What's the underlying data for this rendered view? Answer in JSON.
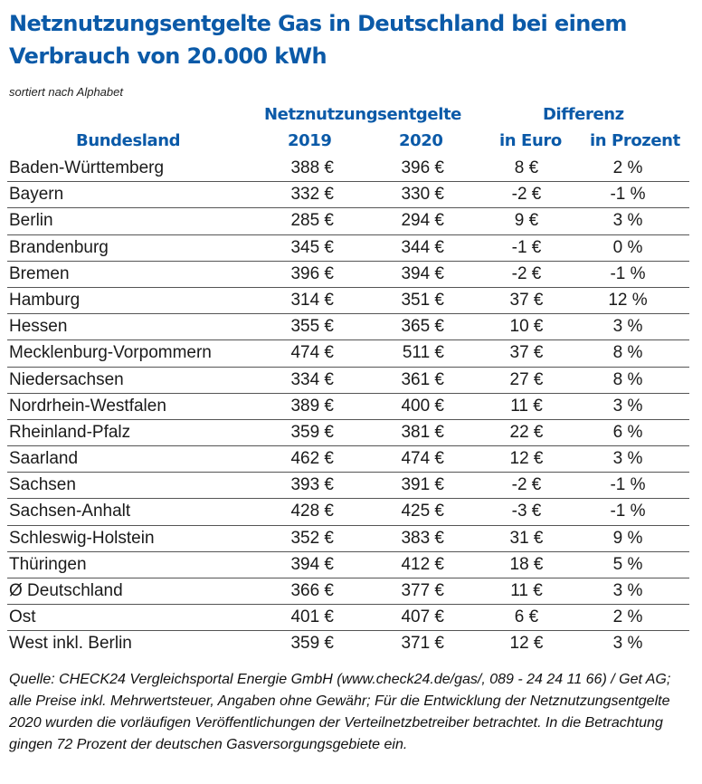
{
  "title": "Netznutzungsentgelte Gas in Deutschland bei einem Verbrauch von 20.000 kWh",
  "subtitle": "sortiert nach Alphabet",
  "header": {
    "group_fees": "Netznutzungsentgelte",
    "group_diff": "Differenz",
    "col_state": "Bundesland",
    "col_2019": "2019",
    "col_2020": "2020",
    "col_euro": "in Euro",
    "col_pct": "in Prozent"
  },
  "colors": {
    "accent": "#0b5aa8",
    "text": "#1a1a1a",
    "rule": "#555555"
  },
  "chart_data": {
    "type": "table",
    "title": "Netznutzungsentgelte Gas in Deutschland bei einem Verbrauch von 20.000 kWh",
    "columns": [
      "Bundesland",
      "2019",
      "2020",
      "in Euro",
      "in Prozent"
    ],
    "rows": [
      [
        "Baden-Württemberg",
        "388 €",
        "396 €",
        "8 €",
        "2 %"
      ],
      [
        "Bayern",
        "332 €",
        "330 €",
        "-2 €",
        "-1 %"
      ],
      [
        "Berlin",
        "285 €",
        "294 €",
        "9 €",
        "3 %"
      ],
      [
        "Brandenburg",
        "345 €",
        "344 €",
        "-1 €",
        "0 %"
      ],
      [
        "Bremen",
        "396 €",
        "394 €",
        "-2 €",
        "-1 %"
      ],
      [
        "Hamburg",
        "314 €",
        "351 €",
        "37 €",
        "12 %"
      ],
      [
        "Hessen",
        "355 €",
        "365 €",
        "10 €",
        "3 %"
      ],
      [
        "Mecklenburg-Vorpommern",
        "474 €",
        "511 €",
        "37 €",
        "8 %"
      ],
      [
        "Niedersachsen",
        "334 €",
        "361 €",
        "27 €",
        "8 %"
      ],
      [
        "Nordrhein-Westfalen",
        "389 €",
        "400 €",
        "11 €",
        "3 %"
      ],
      [
        "Rheinland-Pfalz",
        "359 €",
        "381 €",
        "22 €",
        "6 %"
      ],
      [
        "Saarland",
        "462 €",
        "474 €",
        "12 €",
        "3 %"
      ],
      [
        "Sachsen",
        "393 €",
        "391 €",
        "-2 €",
        "-1 %"
      ],
      [
        "Sachsen-Anhalt",
        "428 €",
        "425 €",
        "-3 €",
        "-1 %"
      ],
      [
        "Schleswig-Holstein",
        "352 €",
        "383 €",
        "31 €",
        "9 %"
      ],
      [
        "Thüringen",
        "394 €",
        "412 €",
        "18 €",
        "5 %"
      ],
      [
        "Ø Deutschland",
        "366 €",
        "377 €",
        "11 €",
        "3 %"
      ],
      [
        "Ost",
        "401 €",
        "407 €",
        "6 €",
        "2 %"
      ],
      [
        "West inkl. Berlin",
        "359 €",
        "371 €",
        "12 €",
        "3 %"
      ]
    ]
  },
  "footer": "Quelle: CHECK24 Vergleichsportal Energie GmbH (www.check24.de/gas/, 089 - 24 24 11 66) / Get AG; alle Preise inkl. Mehrwertsteuer, Angaben ohne Gewähr; Für die Entwicklung der Netznutzungsentgelte 2020 wurden die vorläufigen Veröffentlichungen der Verteilnetzbetreiber betrachtet. In die Betrachtung gingen 72 Prozent der deutschen Gasversorgungsgebiete ein."
}
